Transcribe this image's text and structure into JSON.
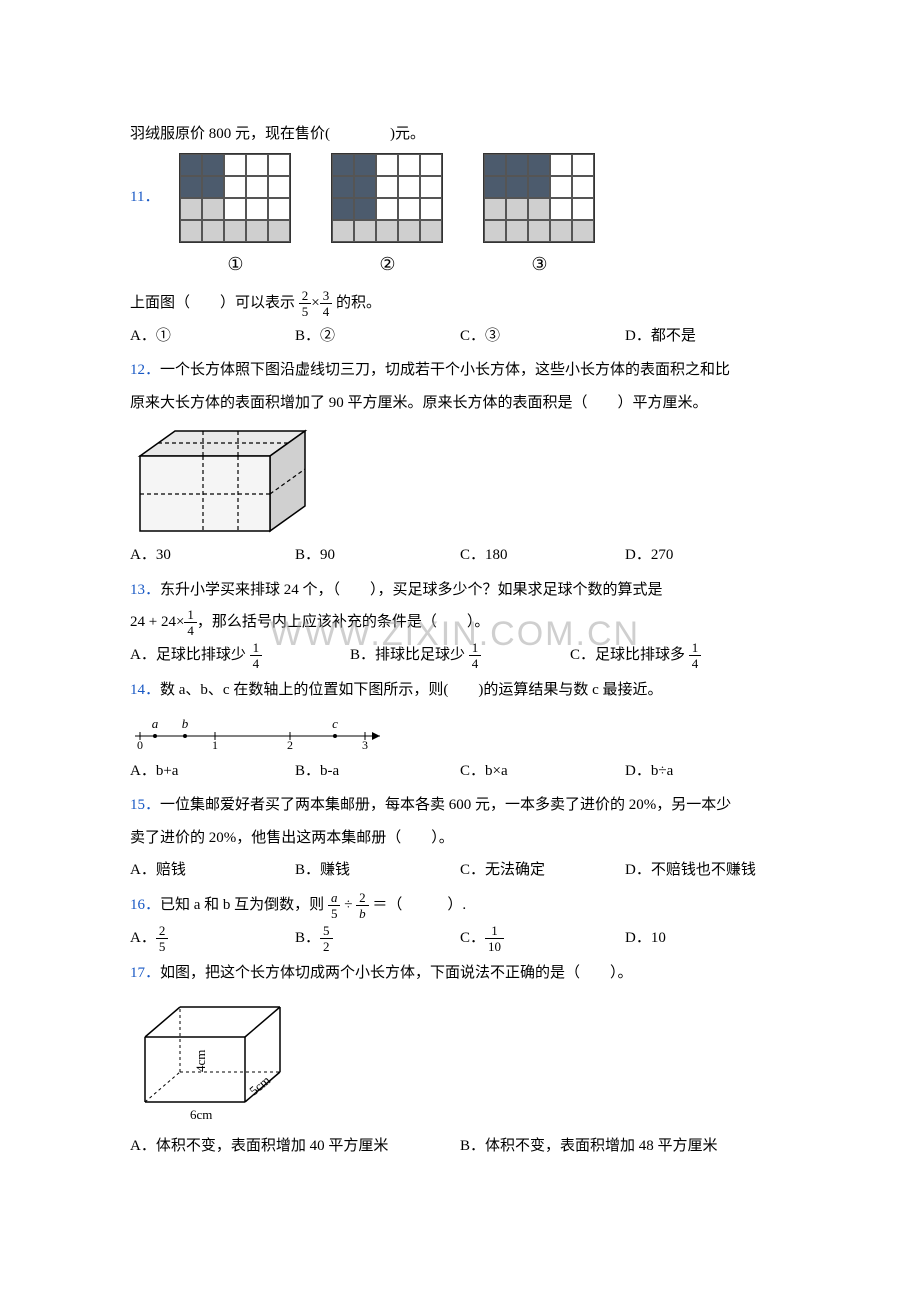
{
  "intro": "羽绒服原价 800 元，现在售价(　　　　)元。",
  "q11": {
    "num": "11．",
    "circles": [
      "①",
      "②",
      "③"
    ],
    "text_before": "上面图（　　）可以表示",
    "frac1_num": "2",
    "frac1_den": "5",
    "frac2_num": "3",
    "frac2_den": "4",
    "text_after": "的积。",
    "opts": {
      "a": "A．①",
      "b": "B．②",
      "c": "C．③",
      "d": "D．都不是"
    }
  },
  "q12": {
    "num": "12．",
    "text1": "一个长方体照下图沿虚线切三刀，切成若干个小长方体，这些小长方体的表面积之和比",
    "text2": "原来大长方体的表面积增加了 90 平方厘米。原来长方体的表面积是（　　）平方厘米。",
    "opts": {
      "a": "A．30",
      "b": "B．90",
      "c": "C．180",
      "d": "D．270"
    }
  },
  "q13": {
    "num": "13．",
    "text1": "东升小学买来排球 24 个，（　　），买足球多少个？如果求足球个数的算式是",
    "eq_prefix": "24 + 24×",
    "eq_frac_num": "1",
    "eq_frac_den": "4",
    "text2": "，那么括号内上应该补充的条件是（　　）。",
    "wm": "WWW.ZIXIN.COM.CN",
    "opta_pre": "A．足球比排球少",
    "optb_pre": "B．排球比足球少",
    "optc_pre": "C．足球比排球多",
    "frac_num": "1",
    "frac_den": "4"
  },
  "q14": {
    "num": "14．",
    "text": "数 a、b、c 在数轴上的位置如下图所示，则(　　)的运算结果与数 c 最接近。",
    "ticks": [
      "0",
      "1",
      "2",
      "3"
    ],
    "labels": [
      "a",
      "b",
      "c"
    ],
    "opts": {
      "a": "A．b+a",
      "b": "B．b-a",
      "c": "C．b×a",
      "d": "D．b÷a"
    }
  },
  "q15": {
    "num": "15．",
    "text1": "一位集邮爱好者买了两本集邮册，每本各卖 600 元，一本多卖了进价的 20%，另一本少",
    "text2": "卖了进价的 20%，他售出这两本集邮册（　　）。",
    "opts": {
      "a": "A．赔钱",
      "b": "B．赚钱",
      "c": "C．无法确定",
      "d": "D．不赔钱也不赚钱"
    }
  },
  "q16": {
    "num": "16．",
    "text_pre": "已知 a 和 b 互为倒数，则",
    "f1n": "a",
    "f1d": "5",
    "f2n": "2",
    "f2d": "b",
    "text_after": "＝（　　　）.",
    "optan": "2",
    "optad": "5",
    "optbn": "5",
    "optbd": "2",
    "optcn": "1",
    "optcd": "10",
    "optd": "D．10",
    "la": "A．",
    "lb": "B．",
    "lc": "C．"
  },
  "q17": {
    "num": "17．",
    "text": "如图，把这个长方体切成两个小长方体，下面说法不正确的是（　　）。",
    "dim1": "6cm",
    "dim2": "4cm",
    "dim3": "5cm",
    "opta": "A．体积不变，表面积增加 40 平方厘米",
    "optb": "B．体积不变，表面积增加 48 平方厘米"
  },
  "colors": {
    "qnum": "#1858c4",
    "dark": "#4c5b6d",
    "light": "#cfcfcf",
    "text": "#000000"
  },
  "grid11": {
    "g1_dark": [
      [
        0,
        0
      ],
      [
        1,
        0
      ],
      [
        0,
        1
      ],
      [
        1,
        1
      ]
    ],
    "g1_light": [
      [
        0,
        2
      ],
      [
        1,
        2
      ],
      [
        0,
        3
      ],
      [
        1,
        3
      ],
      [
        2,
        3
      ],
      [
        3,
        3
      ],
      [
        4,
        3
      ]
    ],
    "g2_dark": [
      [
        0,
        0
      ],
      [
        1,
        0
      ],
      [
        0,
        1
      ],
      [
        1,
        1
      ],
      [
        0,
        2
      ],
      [
        1,
        2
      ]
    ],
    "g2_light": [
      [
        0,
        3
      ],
      [
        1,
        3
      ],
      [
        2,
        3
      ],
      [
        3,
        3
      ],
      [
        4,
        3
      ]
    ],
    "g3_dark": [
      [
        0,
        0
      ],
      [
        1,
        0
      ],
      [
        2,
        0
      ],
      [
        0,
        1
      ],
      [
        1,
        1
      ],
      [
        2,
        1
      ]
    ],
    "g3_light": [
      [
        0,
        2
      ],
      [
        1,
        2
      ],
      [
        2,
        2
      ],
      [
        0,
        3
      ],
      [
        1,
        3
      ],
      [
        2,
        3
      ],
      [
        3,
        3
      ],
      [
        4,
        3
      ]
    ]
  }
}
